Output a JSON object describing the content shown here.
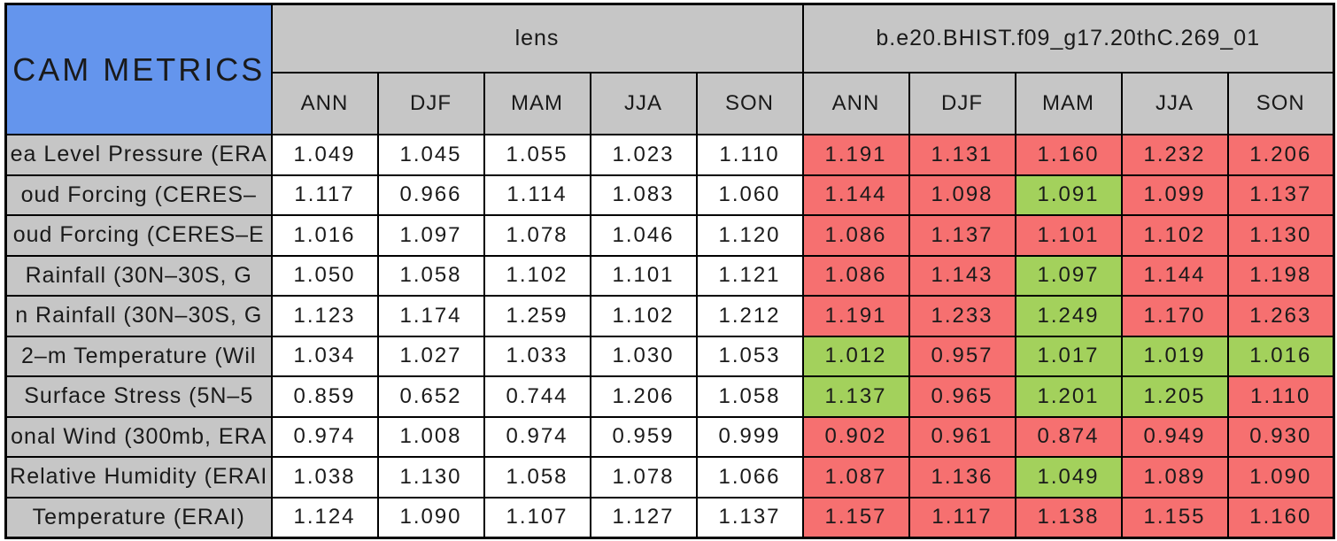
{
  "colors": {
    "corner_bg": "#6495ed",
    "header_bg": "#c6c6c6",
    "worse": "#f67070",
    "better": "#a3d15c",
    "border": "#000000",
    "cell_bg": "#ffffff"
  },
  "chart_data": {
    "type": "table",
    "title": "CAM METRICS",
    "column_groups": [
      "lens",
      "b.e20.BHIST.f09_g17.20thC.269_01"
    ],
    "columns": [
      "ANN",
      "DJF",
      "MAM",
      "JJA",
      "SON"
    ],
    "status_legend": {
      "better_color": "#a3d15c",
      "worse_color": "#f67070"
    },
    "rows": [
      {
        "label": "ea Level Pressure (ERA",
        "lens": [
          1.049,
          1.045,
          1.055,
          1.023,
          1.11
        ],
        "model": [
          1.191,
          1.131,
          1.16,
          1.232,
          1.206
        ],
        "model_status": [
          "worse",
          "worse",
          "worse",
          "worse",
          "worse"
        ]
      },
      {
        "label": "oud Forcing (CERES–",
        "lens": [
          1.117,
          0.966,
          1.114,
          1.083,
          1.06
        ],
        "model": [
          1.144,
          1.098,
          1.091,
          1.099,
          1.137
        ],
        "model_status": [
          "worse",
          "worse",
          "better",
          "worse",
          "worse"
        ]
      },
      {
        "label": "oud Forcing (CERES–E",
        "lens": [
          1.016,
          1.097,
          1.078,
          1.046,
          1.12
        ],
        "model": [
          1.086,
          1.137,
          1.101,
          1.102,
          1.13
        ],
        "model_status": [
          "worse",
          "worse",
          "worse",
          "worse",
          "worse"
        ]
      },
      {
        "label": "Rainfall (30N–30S, G",
        "lens": [
          1.05,
          1.058,
          1.102,
          1.101,
          1.121
        ],
        "model": [
          1.086,
          1.143,
          1.097,
          1.144,
          1.198
        ],
        "model_status": [
          "worse",
          "worse",
          "better",
          "worse",
          "worse"
        ]
      },
      {
        "label": "n Rainfall (30N–30S, G",
        "lens": [
          1.123,
          1.174,
          1.259,
          1.102,
          1.212
        ],
        "model": [
          1.191,
          1.233,
          1.249,
          1.17,
          1.263
        ],
        "model_status": [
          "worse",
          "worse",
          "better",
          "worse",
          "worse"
        ]
      },
      {
        "label": "2–m Temperature (Wil",
        "lens": [
          1.034,
          1.027,
          1.033,
          1.03,
          1.053
        ],
        "model": [
          1.012,
          0.957,
          1.017,
          1.019,
          1.016
        ],
        "model_status": [
          "better",
          "worse",
          "better",
          "better",
          "better"
        ]
      },
      {
        "label": "Surface Stress (5N–5",
        "lens": [
          0.859,
          0.652,
          0.744,
          1.206,
          1.058
        ],
        "model": [
          1.137,
          0.965,
          1.201,
          1.205,
          1.11
        ],
        "model_status": [
          "better",
          "worse",
          "better",
          "better",
          "worse"
        ]
      },
      {
        "label": "onal Wind (300mb, ERA",
        "lens": [
          0.974,
          1.008,
          0.974,
          0.959,
          0.999
        ],
        "model": [
          0.902,
          0.961,
          0.874,
          0.949,
          0.93
        ],
        "model_status": [
          "worse",
          "worse",
          "worse",
          "worse",
          "worse"
        ]
      },
      {
        "label": "Relative Humidity (ERAI",
        "lens": [
          1.038,
          1.13,
          1.058,
          1.078,
          1.066
        ],
        "model": [
          1.087,
          1.136,
          1.049,
          1.089,
          1.09
        ],
        "model_status": [
          "worse",
          "worse",
          "better",
          "worse",
          "worse"
        ]
      },
      {
        "label": "Temperature (ERAI)",
        "lens": [
          1.124,
          1.09,
          1.107,
          1.127,
          1.137
        ],
        "model": [
          1.157,
          1.117,
          1.138,
          1.155,
          1.16
        ],
        "model_status": [
          "worse",
          "worse",
          "worse",
          "worse",
          "worse"
        ]
      }
    ]
  }
}
